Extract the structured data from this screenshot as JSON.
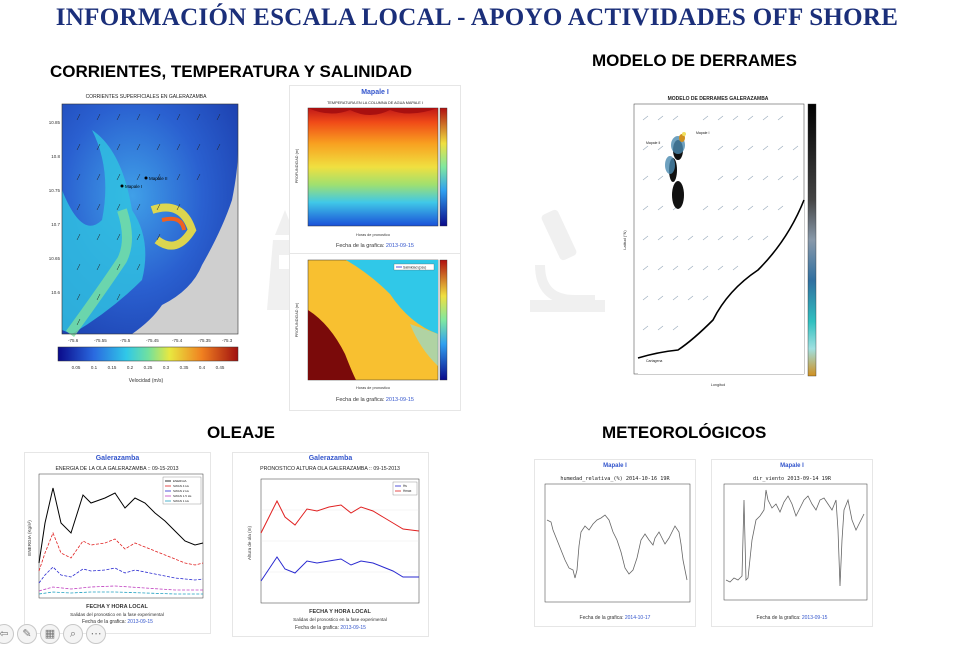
{
  "title": "INFORMACIÓN ESCALA LOCAL - APOYO ACTIVIDADES OFF SHORE",
  "sections": {
    "currents": "CORRIENTES, TEMPERATURA Y SALINIDAD",
    "spills": "MODELO DE DERRAMES",
    "waves": "OLEAJE",
    "weather": "METEOROLÓGICOS"
  },
  "currents_map": {
    "title": "CORRIENTES SUPERFICIALES EN GALERAZAMBA",
    "label_a": "Mapale I",
    "label_b": "Mapale II",
    "colorbar_label": "Velocidad (m/s)",
    "colorbar_ticks": [
      "0.05",
      "0.1",
      "0.15",
      "0.2",
      "0.25",
      "0.3",
      "0.35",
      "0.4",
      "0.45"
    ],
    "x_ticks": [
      "-75.6",
      "-75.55",
      "-75.5",
      "-75.45",
      "-75.4",
      "-75.35",
      "-75.3"
    ],
    "y_ticks": [
      "10.85",
      "10.8",
      "10.75",
      "10.7",
      "10.65",
      "10.6"
    ]
  },
  "temp_plot": {
    "header": "Mapale I",
    "title": "TEMPERATURA EN LA COLUMNA DE AGUA MAPALE I",
    "xlabel": "Horas de pronostico",
    "ylabel": "PROFUNDIDAD (m)",
    "date_label": "Fecha de la grafica:",
    "date": "2013-09-15"
  },
  "salinity_plot": {
    "legend": "Salinidad (psu)",
    "xlabel": "Horas de pronostico",
    "ylabel": "PROFUNDIDAD (m)",
    "date_label": "Fecha de la grafica:",
    "date": "2013-09-15"
  },
  "spill_map": {
    "title": "MODELO DE DERRAMES GALERAZAMBA",
    "point_label_a": "Mapale I",
    "point_label_b": "Mapale II",
    "ylabel": "Latitud (°N)",
    "xlabel": "Longitud",
    "corner_label": "Cartagena"
  },
  "wave_energy": {
    "header": "Galerazamba",
    "title": "ENERGIA DE LA OLA GALERAZAMBA :: 09-15-2013",
    "ylabel": "ENERGIA (Kg/s²)",
    "xlabel": "FECHA Y HORA LOCAL",
    "subtitle": "Salidas del pronostico en la fase experimental",
    "date_label": "Fecha de la grafica:",
    "date": "2013-09-15",
    "legend": [
      "ENERGIA",
      "SWAN 4 Hs",
      "SWAN 2 Hs",
      "SWAN 1.5 Hs",
      "SWAN 1 Hs"
    ],
    "colors": [
      "#000000",
      "#e02020",
      "#2a2ad0",
      "#c040c0",
      "#20a0c0"
    ]
  },
  "wave_height": {
    "header": "Galerazamba",
    "title": "PRONOSTICO ALTURA OLA GALERAZAMBA :: 09-15-2013",
    "ylabel": "Altura de ola (m)",
    "xlabel": "FECHA Y HORA LOCAL",
    "subtitle": "Salidas del pronostico en la fase experimental",
    "date_label": "Fecha de la grafica:",
    "date": "2013-09-15",
    "legend": [
      "Hs",
      "Hmax"
    ],
    "colors": [
      "#2a2ad0",
      "#e02020"
    ]
  },
  "humidity": {
    "header": "Mapale I",
    "title": "humedad_relativa_(%) 2014-10-16 19R",
    "date_label": "Fecha de la grafica:",
    "date": "2014-10-17"
  },
  "wind": {
    "header": "Mapale I",
    "title": "dir_viento 2013-09-14 19R",
    "date_label": "Fecha de la grafica:",
    "date": "2013-09-15"
  },
  "toolbar": {
    "icons": [
      "pointer-icon",
      "pen-icon",
      "gallery-icon",
      "zoom-icon",
      "more-icon"
    ],
    "glyphs": [
      "⇦",
      "✎",
      "▦",
      "⌕",
      "⋯"
    ]
  }
}
